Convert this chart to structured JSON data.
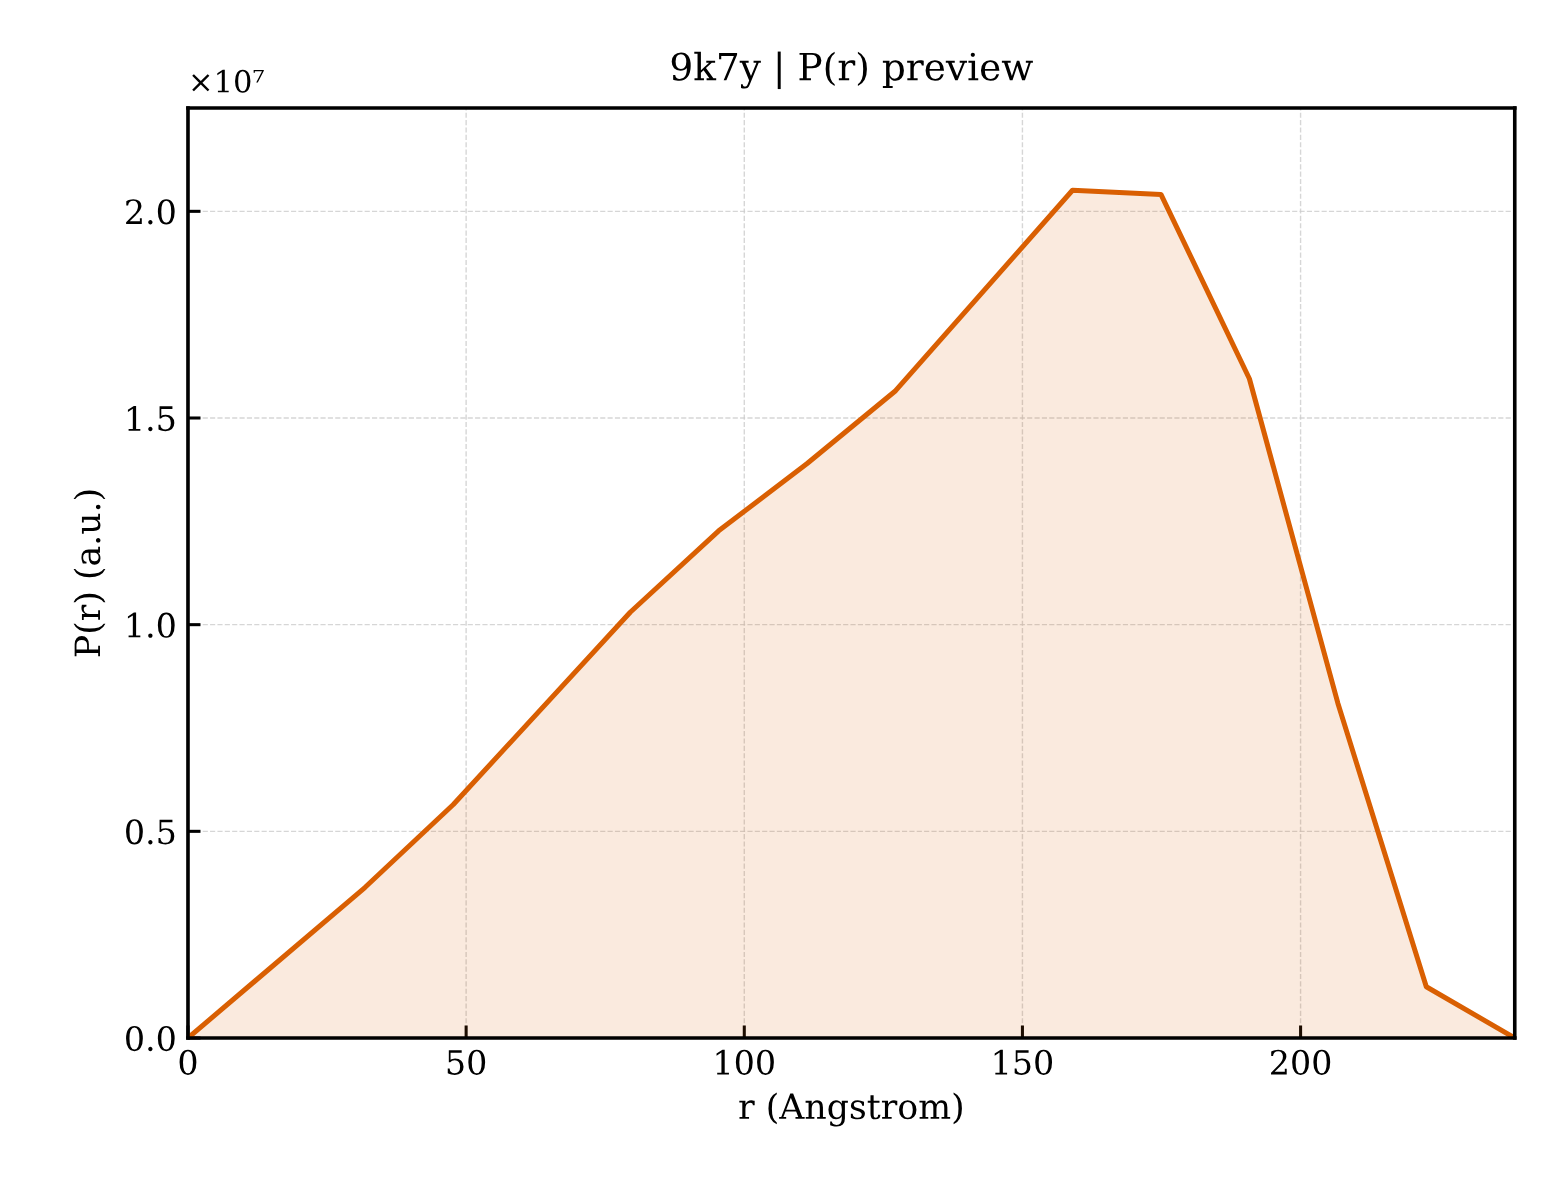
{
  "chart_data": {
    "type": "area",
    "title": "9k7y | P(r) preview",
    "xlabel": "r (Angstrom)",
    "ylabel": "P(r) (a.u.)",
    "x": [
      0,
      31.8,
      47.7,
      79.5,
      95.4,
      111.3,
      127.2,
      159.0,
      174.9,
      190.8,
      206.7,
      222.6,
      238.5
    ],
    "series": [
      {
        "color": "#d95f02",
        "values": [
          0,
          0.364,
          0.565,
          1.03,
          1.227,
          1.39,
          1.566,
          2.051,
          2.041,
          1.595,
          0.81,
          0.124,
          0
        ]
      }
    ],
    "xlim": [
      0,
      238.5
    ],
    "ylim": [
      0,
      2.25
    ],
    "xticks": [
      0,
      50,
      100,
      150,
      200
    ],
    "yticks": [
      {
        "value": 0,
        "label": "0.0"
      },
      {
        "value": 0.5,
        "label": "0.5"
      },
      {
        "value": 1,
        "label": "1.0"
      },
      {
        "value": 1.5,
        "label": "1.5"
      },
      {
        "value": 2,
        "label": "2.0"
      }
    ],
    "grid": true,
    "annotations": [
      "×10⁷"
    ]
  }
}
